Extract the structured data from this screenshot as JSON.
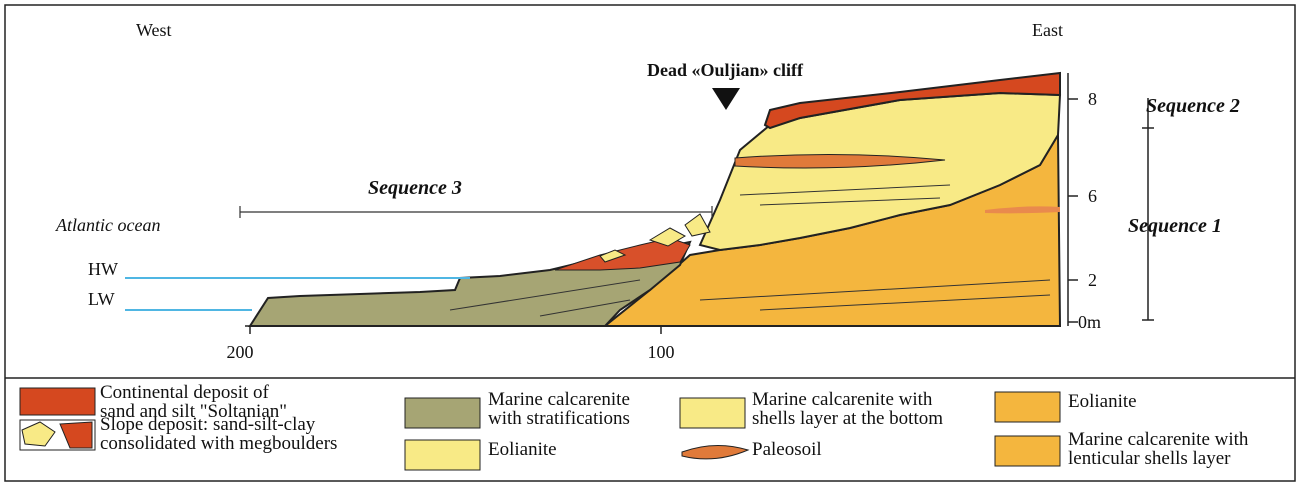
{
  "header": {
    "west": "West",
    "east": "East",
    "cliff": "Dead «Ouljian» cliff"
  },
  "labels": {
    "sequence_3": "Sequence 3",
    "sequence_2": "Sequence 2",
    "sequence_1": "Sequence 1",
    "ocean": "Atlantic ocean",
    "hw": "HW",
    "lw": "LW"
  },
  "distance_axis": [
    "200",
    "100"
  ],
  "height_axis": [
    "8",
    "6",
    "2",
    "0m"
  ],
  "legend": [
    {
      "lines": [
        "Continental deposit  of",
        "sand and silt \"Soltanian\""
      ]
    },
    {
      "lines": [
        "Slope deposit: sand-silt-clay",
        "consolidated with megboulders"
      ]
    },
    {
      "lines": [
        "Marine calcarenite",
        "with stratifications"
      ]
    },
    {
      "lines": [
        "Eolianite"
      ]
    },
    {
      "lines": [
        "Marine calcarenite with",
        "shells layer at the bottom"
      ]
    },
    {
      "lines": [
        "Paleosoil"
      ]
    },
    {
      "lines": [
        "Eolianite"
      ]
    },
    {
      "lines": [
        "Marine calcarenite with",
        "lenticular shells layer"
      ]
    }
  ]
}
